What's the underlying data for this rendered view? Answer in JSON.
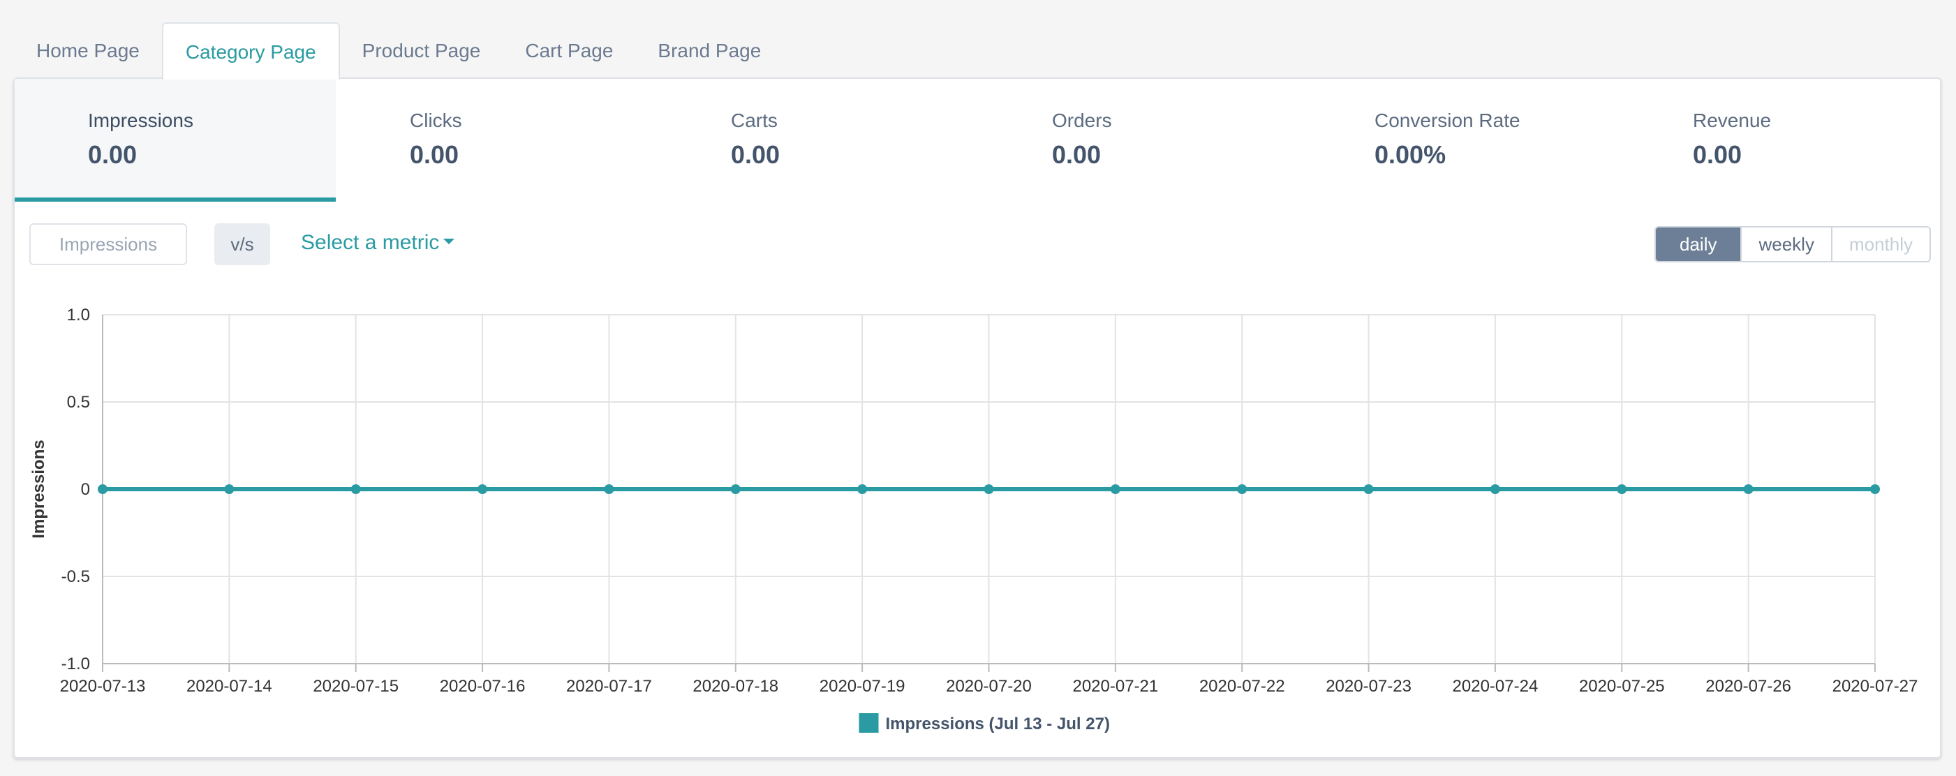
{
  "tabs": [
    {
      "label": "Home Page",
      "active": false
    },
    {
      "label": "Category Page",
      "active": true
    },
    {
      "label": "Product Page",
      "active": false
    },
    {
      "label": "Cart Page",
      "active": false
    },
    {
      "label": "Brand Page",
      "active": false
    }
  ],
  "kpis": [
    {
      "label": "Impressions",
      "value": "0.00",
      "active": true
    },
    {
      "label": "Clicks",
      "value": "0.00",
      "active": false
    },
    {
      "label": "Carts",
      "value": "0.00",
      "active": false
    },
    {
      "label": "Orders",
      "value": "0.00",
      "active": false
    },
    {
      "label": "Conversion Rate",
      "value": "0.00%",
      "active": false
    },
    {
      "label": "Revenue",
      "value": "0.00",
      "active": false
    }
  ],
  "controls": {
    "primary_metric": "Impressions",
    "vs_label": "v/s",
    "select_metric_label": "Select a metric",
    "periods": [
      {
        "label": "daily",
        "state": "active"
      },
      {
        "label": "weekly",
        "state": "normal"
      },
      {
        "label": "monthly",
        "state": "disabled"
      }
    ]
  },
  "colors": {
    "accent": "#2a9ba2",
    "text": "#44546a",
    "grid": "#e3e3e3"
  },
  "chart_data": {
    "type": "line",
    "x": [
      "2020-07-13",
      "2020-07-14",
      "2020-07-15",
      "2020-07-16",
      "2020-07-17",
      "2020-07-18",
      "2020-07-19",
      "2020-07-20",
      "2020-07-21",
      "2020-07-22",
      "2020-07-23",
      "2020-07-24",
      "2020-07-25",
      "2020-07-26",
      "2020-07-27"
    ],
    "series": [
      {
        "name": "Impressions (Jul 13 - Jul 27)",
        "values": [
          0,
          0,
          0,
          0,
          0,
          0,
          0,
          0,
          0,
          0,
          0,
          0,
          0,
          0,
          0
        ],
        "color": "#2a9ba2"
      }
    ],
    "ylabel": "Impressions",
    "ylim": [
      -1.0,
      1.0
    ],
    "yticks": [
      "1.0",
      "0.5",
      "0",
      "-0.5",
      "-1.0"
    ],
    "ytick_values": [
      1.0,
      0.5,
      0,
      -0.5,
      -1.0
    ],
    "grid": true,
    "legend_position": "bottom-center"
  }
}
